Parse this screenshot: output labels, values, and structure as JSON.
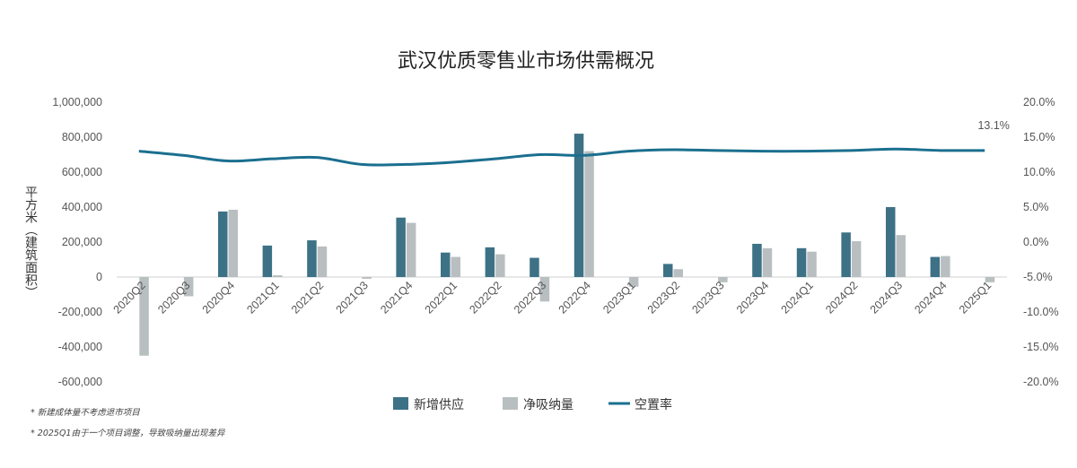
{
  "chart_data": {
    "type": "bar",
    "title": "武汉优质零售业市场供需概况",
    "ylabel": "平方米（建筑面积）",
    "categories": [
      "2020Q2",
      "2020Q3",
      "2020Q4",
      "2021Q1",
      "2021Q2",
      "2021Q3",
      "2021Q4",
      "2022Q1",
      "2022Q2",
      "2022Q3",
      "2022Q4",
      "2023Q1",
      "2023Q2",
      "2023Q3",
      "2023Q4",
      "2024Q1",
      "2024Q2",
      "2024Q3",
      "2024Q4",
      "2025Q1"
    ],
    "left_axis": {
      "ylim": [
        -600000,
        1000000
      ],
      "ticks": [
        1000000,
        800000,
        600000,
        400000,
        200000,
        0,
        -200000,
        -400000,
        -600000
      ],
      "tick_labels": [
        "1,000,000",
        "800,000",
        "600,000",
        "400,000",
        "200,000",
        "0",
        "-200,000",
        "-400,000",
        "-600,000"
      ]
    },
    "right_axis": {
      "ylim": [
        -20,
        20
      ],
      "ticks": [
        20,
        15,
        10,
        5,
        0,
        -5,
        -10,
        -15,
        -20
      ],
      "tick_labels": [
        "20.0%",
        "15.0%",
        "10.0%",
        "5.0%",
        "0.0%",
        "-5.0%",
        "-10.0%",
        "-15.0%",
        "-20.0%"
      ]
    },
    "series": [
      {
        "name": "新增供应",
        "type": "bar",
        "color": "#3d7186",
        "values": [
          0,
          0,
          375000,
          180000,
          210000,
          0,
          340000,
          140000,
          170000,
          110000,
          820000,
          0,
          75000,
          0,
          190000,
          165000,
          255000,
          400000,
          115000,
          0
        ]
      },
      {
        "name": "净吸纳量",
        "type": "bar",
        "color": "#b9bfc1",
        "values": [
          -450000,
          -110000,
          385000,
          10000,
          175000,
          -10000,
          310000,
          115000,
          130000,
          -140000,
          720000,
          -55000,
          45000,
          -30000,
          165000,
          145000,
          205000,
          240000,
          120000,
          -30000
        ]
      },
      {
        "name": "空置率",
        "type": "line",
        "color": "#1b6f8f",
        "axis": "right",
        "values": [
          13.0,
          12.4,
          11.6,
          11.9,
          12.1,
          11.1,
          11.1,
          11.4,
          11.9,
          12.5,
          12.4,
          13.0,
          13.2,
          13.1,
          13.0,
          13.0,
          13.1,
          13.3,
          13.1,
          13.1
        ]
      }
    ],
    "annotations": [
      {
        "text": "13.1%"
      }
    ],
    "grid": false,
    "legend": "bottom-center",
    "notes": [
      "* 新建成体量不考虑退市项目",
      "* 2025Q1由于一个项目调整，导致吸纳量出现差异"
    ]
  }
}
